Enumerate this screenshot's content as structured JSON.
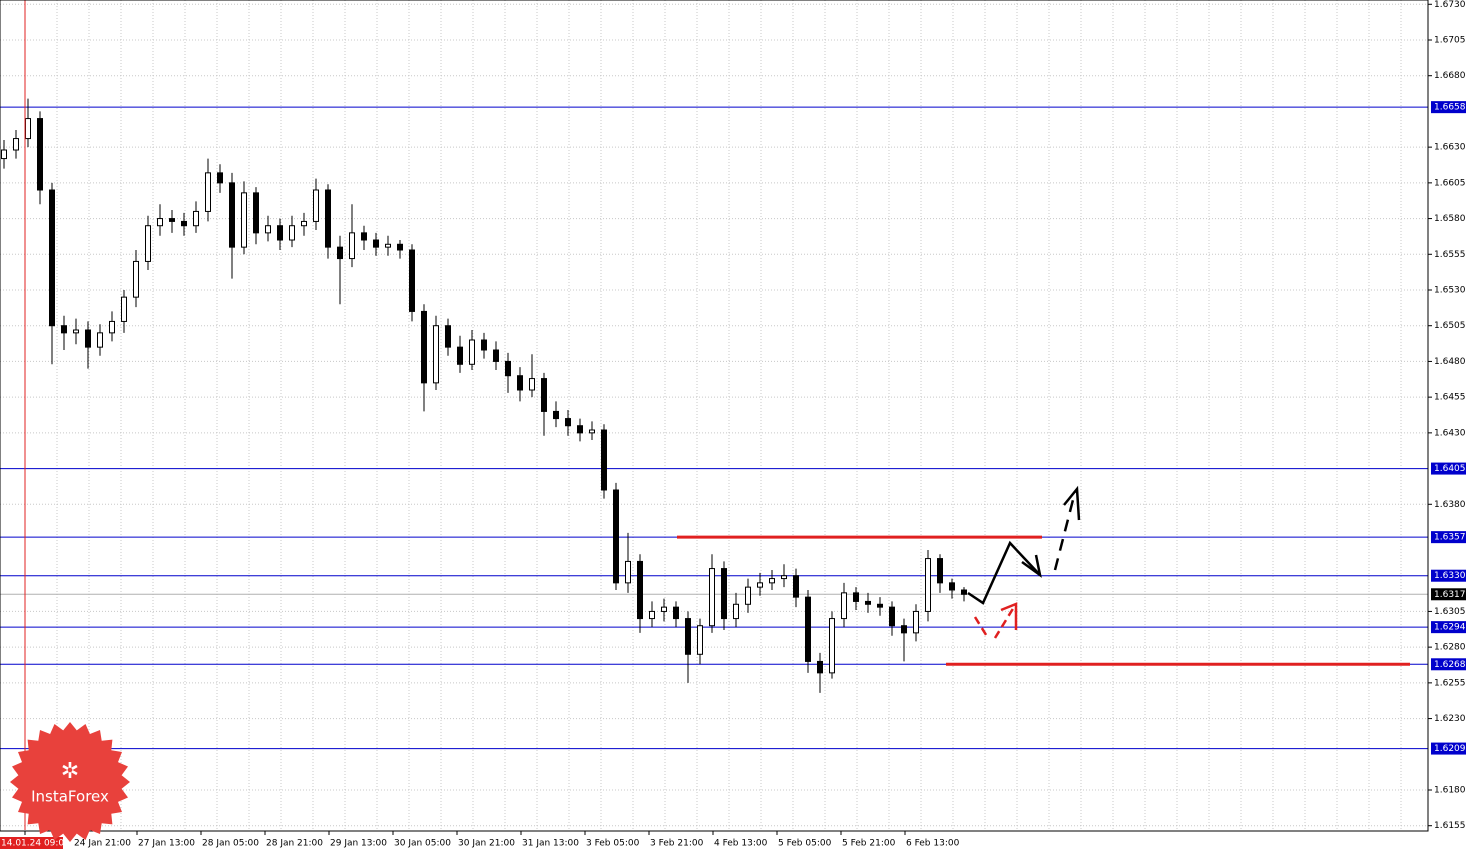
{
  "chart_data": {
    "type": "candlestick",
    "brand": "InstaForex",
    "open": [
      1.6622,
      1.6628,
      1.6636,
      1.665,
      1.66,
      1.6505,
      1.65,
      1.6502,
      1.649,
      1.65,
      1.6508,
      1.6525,
      1.655,
      1.6575,
      1.658,
      1.6578,
      1.6575,
      1.6585,
      1.6612,
      1.6605,
      1.656,
      1.6598,
      1.657,
      1.6575,
      1.6565,
      1.6575,
      1.6578,
      1.66,
      1.656,
      1.6552,
      1.657,
      1.6565,
      1.656,
      1.6562,
      1.6558,
      1.6515,
      1.6465,
      1.6505,
      1.649,
      1.6478,
      1.6495,
      1.6488,
      1.648,
      1.647,
      1.646,
      1.6468,
      1.6445,
      1.644,
      1.6435,
      1.643,
      1.6432,
      1.639,
      1.6325,
      1.634,
      1.63,
      1.6305,
      1.6308,
      1.63,
      1.6275,
      1.6295,
      1.6335,
      1.63,
      1.631,
      1.6322,
      1.6325,
      1.6328,
      1.633,
      1.6315,
      1.627,
      1.6262,
      1.63,
      1.6318,
      1.6312,
      1.631,
      1.6308,
      1.6295,
      1.629,
      1.6305,
      1.6342,
      1.6325,
      1.632
    ],
    "high": [
      1.6635,
      1.6642,
      1.6664,
      1.6655,
      1.6605,
      1.6512,
      1.651,
      1.6508,
      1.6506,
      1.6515,
      1.653,
      1.6558,
      1.6582,
      1.659,
      1.6586,
      1.6584,
      1.6592,
      1.6622,
      1.6618,
      1.6612,
      1.6606,
      1.6602,
      1.6582,
      1.658,
      1.6582,
      1.6584,
      1.6608,
      1.6604,
      1.6568,
      1.659,
      1.6575,
      1.657,
      1.6568,
      1.6565,
      1.6562,
      1.652,
      1.6512,
      1.651,
      1.6498,
      1.6502,
      1.65,
      1.6494,
      1.6486,
      1.6476,
      1.6485,
      1.6472,
      1.6452,
      1.6446,
      1.644,
      1.6438,
      1.6436,
      1.6395,
      1.636,
      1.6345,
      1.6312,
      1.6314,
      1.6312,
      1.6305,
      1.63,
      1.6345,
      1.634,
      1.6318,
      1.6328,
      1.6332,
      1.6334,
      1.6338,
      1.6335,
      1.632,
      1.6276,
      1.6305,
      1.6325,
      1.6322,
      1.6318,
      1.6315,
      1.6312,
      1.63,
      1.631,
      1.6348,
      1.6345,
      1.6328,
      1.6322
    ],
    "low": [
      1.6615,
      1.6622,
      1.663,
      1.659,
      1.6478,
      1.6488,
      1.6492,
      1.6475,
      1.6484,
      1.6494,
      1.65,
      1.6518,
      1.6544,
      1.6568,
      1.657,
      1.6568,
      1.657,
      1.6578,
      1.6598,
      1.6538,
      1.6555,
      1.6562,
      1.6564,
      1.6558,
      1.656,
      1.6568,
      1.6572,
      1.6552,
      1.652,
      1.6546,
      1.6558,
      1.6554,
      1.6554,
      1.6552,
      1.6508,
      1.6445,
      1.646,
      1.6484,
      1.6472,
      1.6474,
      1.6482,
      1.6474,
      1.6458,
      1.6452,
      1.6455,
      1.6428,
      1.6434,
      1.6428,
      1.6424,
      1.6425,
      1.6384,
      1.632,
      1.6318,
      1.629,
      1.6294,
      1.6298,
      1.6294,
      1.6255,
      1.6268,
      1.629,
      1.6292,
      1.6294,
      1.6304,
      1.6316,
      1.632,
      1.6322,
      1.6308,
      1.6262,
      1.6248,
      1.6258,
      1.6294,
      1.6306,
      1.6304,
      1.6302,
      1.6288,
      1.627,
      1.6284,
      1.6298,
      1.6318,
      1.6314,
      1.6312
    ],
    "close": [
      1.6628,
      1.6636,
      1.665,
      1.66,
      1.6505,
      1.65,
      1.6502,
      1.649,
      1.65,
      1.6508,
      1.6525,
      1.655,
      1.6575,
      1.658,
      1.6578,
      1.6575,
      1.6585,
      1.6612,
      1.6605,
      1.656,
      1.6598,
      1.657,
      1.6575,
      1.6565,
      1.6575,
      1.6578,
      1.66,
      1.656,
      1.6552,
      1.657,
      1.6565,
      1.656,
      1.6562,
      1.6558,
      1.6515,
      1.6465,
      1.6505,
      1.649,
      1.6478,
      1.6495,
      1.6488,
      1.648,
      1.647,
      1.646,
      1.6468,
      1.6445,
      1.644,
      1.6435,
      1.643,
      1.6432,
      1.639,
      1.6325,
      1.634,
      1.63,
      1.6305,
      1.6308,
      1.63,
      1.6275,
      1.6295,
      1.6335,
      1.63,
      1.631,
      1.6322,
      1.6325,
      1.6328,
      1.633,
      1.6315,
      1.627,
      1.6262,
      1.63,
      1.6318,
      1.6312,
      1.631,
      1.6308,
      1.6295,
      1.629,
      1.6305,
      1.6342,
      1.6325,
      1.632,
      1.6317
    ],
    "ylim": [
      1.6152,
      1.6733
    ],
    "yticks": [
      {
        "value": 1.673,
        "label": "1.6730"
      },
      {
        "value": 1.6705,
        "label": "1.6705"
      },
      {
        "value": 1.668,
        "label": "1.6680"
      },
      {
        "value": 1.663,
        "label": "1.6630"
      },
      {
        "value": 1.6605,
        "label": "1.6605"
      },
      {
        "value": 1.658,
        "label": "1.6580"
      },
      {
        "value": 1.6555,
        "label": "1.6555"
      },
      {
        "value": 1.653,
        "label": "1.6530"
      },
      {
        "value": 1.6505,
        "label": "1.6505"
      },
      {
        "value": 1.648,
        "label": "1.6480"
      },
      {
        "value": 1.6455,
        "label": "1.6455"
      },
      {
        "value": 1.643,
        "label": "1.6430"
      },
      {
        "value": 1.638,
        "label": "1.6380"
      },
      {
        "value": 1.6305,
        "label": "1.6305"
      },
      {
        "value": 1.628,
        "label": "1.6280"
      },
      {
        "value": 1.6255,
        "label": "1.6255"
      },
      {
        "value": 1.623,
        "label": "1.6230"
      },
      {
        "value": 1.618,
        "label": "1.6180"
      },
      {
        "value": 1.6155,
        "label": "1.6155"
      }
    ],
    "grid": true,
    "levels": [
      {
        "value": 1.6658,
        "label": "1.6658"
      },
      {
        "value": 1.6405,
        "label": "1.6405"
      },
      {
        "value": 1.6357,
        "label": "1.6357"
      },
      {
        "value": 1.633,
        "label": "1.6330"
      },
      {
        "value": 1.6294,
        "label": "1.6294"
      },
      {
        "value": 1.6268,
        "label": "1.6268"
      },
      {
        "value": 1.6209,
        "label": "1.6209"
      }
    ],
    "current_price": {
      "value": 1.6317,
      "label": "1.6317"
    },
    "red_levels": [
      1.6357,
      1.6268
    ],
    "time_labels": [
      "14.01.24 09:00",
      "24 Jan 21:00",
      "27 Jan 13:00",
      "28 Jan 05:00",
      "28 Jan 21:00",
      "29 Jan 13:00",
      "30 Jan 05:00",
      "30 Jan 21:00",
      "31 Jan 13:00",
      "3 Feb 05:00",
      "3 Feb 21:00",
      "4 Feb 13:00",
      "5 Feb 05:00",
      "5 Feb 21:00",
      "6 Feb 13:00"
    ]
  }
}
